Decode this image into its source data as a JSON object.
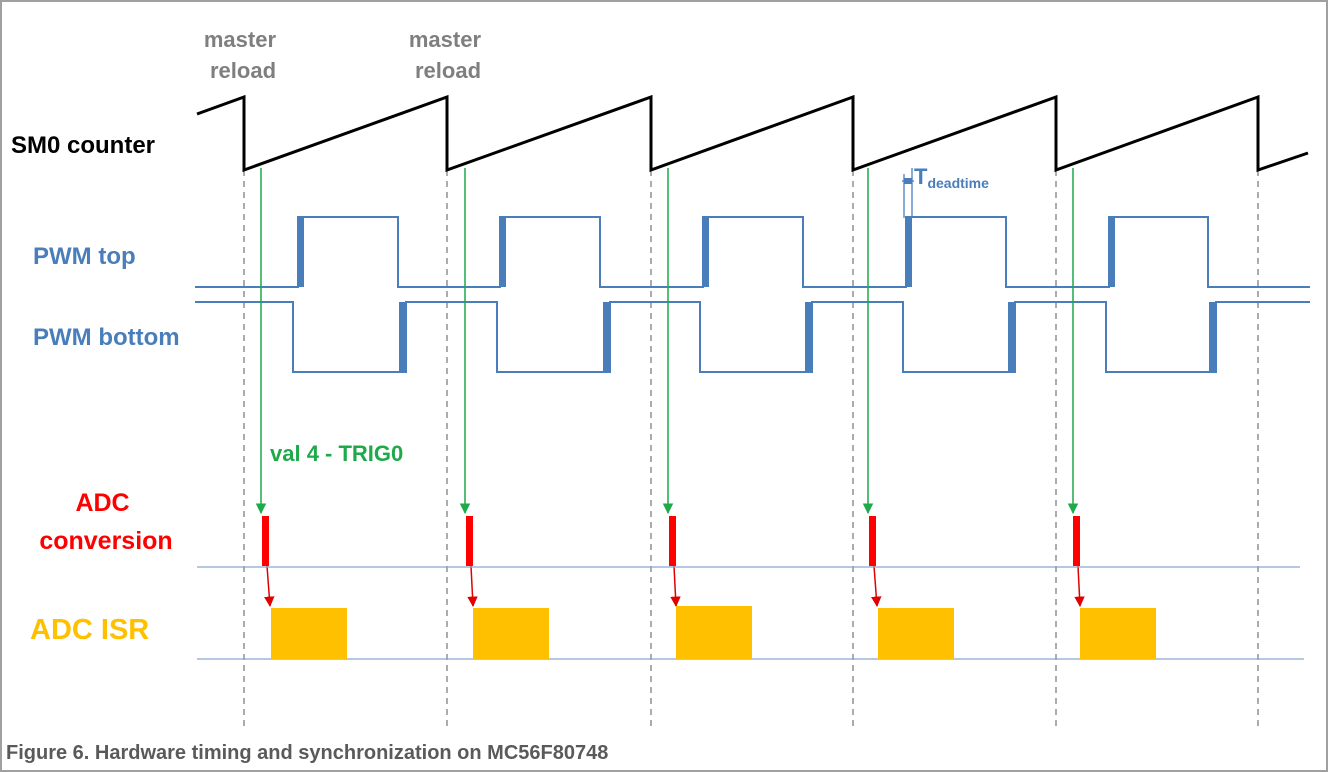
{
  "annotations": {
    "reload_1": [
      "master",
      "reload"
    ],
    "reload_2": [
      "master",
      "reload"
    ],
    "deadtime_main": "T",
    "deadtime_sub": "deadtime",
    "trigger": "val 4 - TRIG0"
  },
  "signals": {
    "sm0": "SM0 counter",
    "pwm_top": "PWM top",
    "pwm_bottom": "PWM bottom",
    "adc_conv": [
      "ADC",
      "conversion"
    ],
    "adc_isr": "ADC ISR"
  },
  "caption": "Figure 6.  Hardware timing and synchronization on MC56F80748",
  "colors": {
    "counter": "#000000",
    "pwm": "#4a7ebb",
    "trigger": "#1faa4a",
    "adc": "#ff0000",
    "isr": "#ffc000",
    "grid": "#808080",
    "label_gray": "#7f7f7f"
  }
}
